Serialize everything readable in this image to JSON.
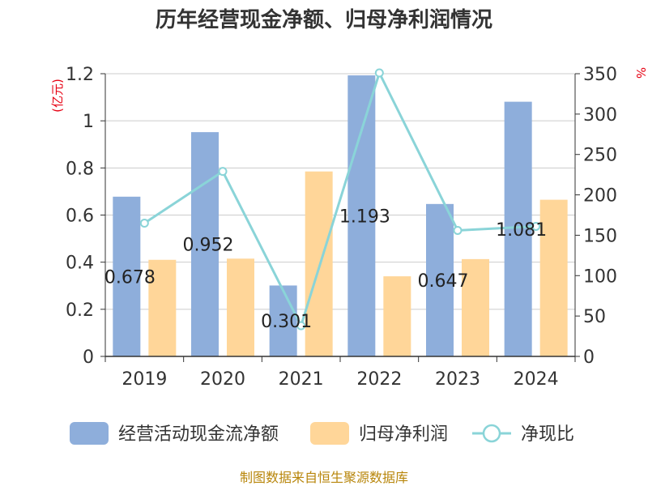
{
  "chart_data": {
    "type": "bar",
    "title": "历年经营现金净额、归母净利润情况",
    "categories": [
      "2019",
      "2020",
      "2021",
      "2022",
      "2023",
      "2024"
    ],
    "y_left_unit": "(亿元)",
    "y_right_unit": "%",
    "ylim_left": [
      0,
      1.2
    ],
    "yticks_left": [
      "0",
      "0.2",
      "0.4",
      "0.6",
      "0.8",
      "1",
      "1.2"
    ],
    "ylim_right": [
      0,
      350
    ],
    "yticks_right": [
      "0",
      "50",
      "100",
      "150",
      "200",
      "250",
      "300",
      "350"
    ],
    "grid": true,
    "legend_position": "bottom",
    "series": [
      {
        "name": "经营活动现金流净额",
        "kind": "bar",
        "axis": "left",
        "color": "#8eaedb",
        "values": [
          0.678,
          0.952,
          0.301,
          1.193,
          0.647,
          1.081
        ],
        "labels": [
          "0.678",
          "0.952",
          "0.301",
          "1.193",
          "0.647",
          "1.081"
        ]
      },
      {
        "name": "归母净利润",
        "kind": "bar",
        "axis": "left",
        "color": "#ffd699",
        "values": [
          0.41,
          0.415,
          0.785,
          0.34,
          0.413,
          0.665
        ]
      },
      {
        "name": "净现比",
        "kind": "line",
        "axis": "right",
        "color": "#8ad4d8",
        "values": [
          165,
          229,
          38,
          351,
          156,
          161
        ]
      }
    ],
    "source": "制图数据来自恒生聚源数据库"
  }
}
